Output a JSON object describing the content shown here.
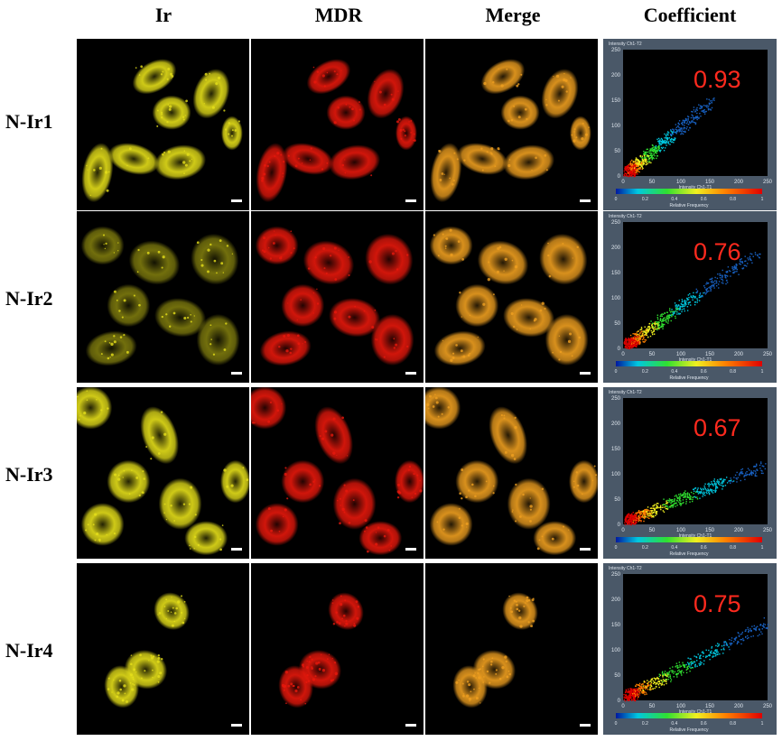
{
  "headers": [
    "Ir",
    "MDR",
    "Merge",
    "Coefficient"
  ],
  "rows": [
    {
      "label": "N-Ir1",
      "coefficient": "0.93",
      "x_ticks": [
        "0",
        "50",
        "100",
        "150",
        "200",
        "250"
      ],
      "y_ticks": [
        "0",
        "50",
        "100",
        "150",
        "200",
        "250"
      ]
    },
    {
      "label": "N-Ir2",
      "coefficient": "0.76",
      "x_ticks": [
        "0",
        "50",
        "100",
        "150",
        "200",
        "250"
      ],
      "y_ticks": [
        "0",
        "50",
        "100",
        "150",
        "200",
        "250"
      ]
    },
    {
      "label": "N-Ir3",
      "coefficient": "0.67",
      "x_ticks": [
        "0",
        "50",
        "100",
        "150",
        "200",
        "250"
      ],
      "y_ticks": [
        "0",
        "50",
        "100",
        "150",
        "200",
        "250"
      ]
    },
    {
      "label": "N-Ir4",
      "coefficient": "0.75",
      "x_ticks": [
        "0",
        "50",
        "100",
        "150",
        "200",
        "250"
      ],
      "y_ticks": [
        "0",
        "50",
        "100",
        "150",
        "200",
        "250"
      ]
    }
  ],
  "plot": {
    "y_axis_title": "Intensity Ch1-T2",
    "x_axis_title": "Intensity Ch1-T1",
    "colorbar_ticks": [
      "0",
      "0.2",
      "0.4",
      "0.6",
      "0.8",
      "1"
    ],
    "colorbar_label": "Relative Frequency"
  },
  "colors": {
    "ir_channel": "#e6e01a",
    "mdr_channel": "#e8180c",
    "merge_channel": "#f0a020",
    "coefficient_text": "#ff2a1e",
    "plot_background": "#4a5868"
  }
}
